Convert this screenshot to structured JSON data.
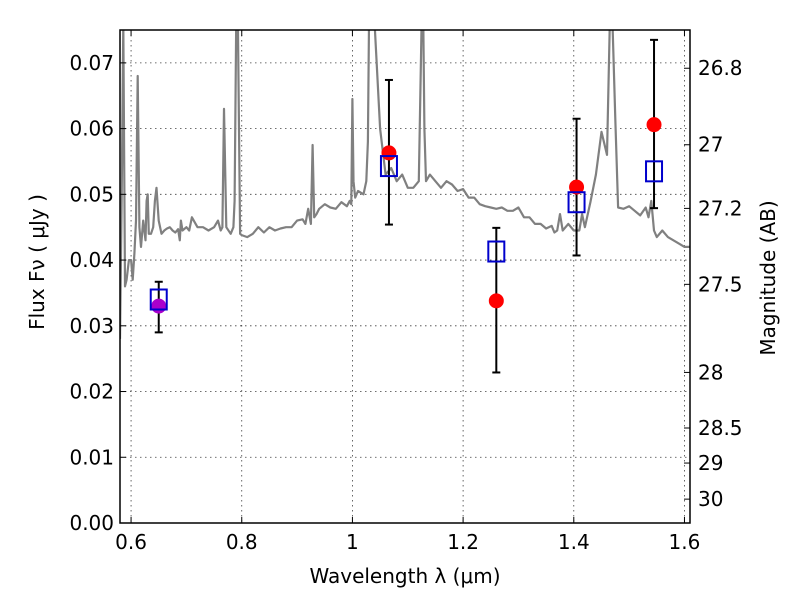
{
  "chart_data": {
    "type": "scatter",
    "title": "",
    "xlabel": "Wavelength  λ (μm)",
    "ylabel": "Flux  Fν (  μJy )",
    "ylabel_right": "Magnitude (AB)",
    "xlim": [
      0.58,
      1.61
    ],
    "ylim": [
      0.0,
      0.075
    ],
    "x_ticks": [
      0.6,
      0.8,
      1.0,
      1.2,
      1.4,
      1.6
    ],
    "x_tick_labels": [
      "0.6",
      "0.8",
      "1",
      "1.2",
      "1.4",
      "1.6"
    ],
    "y_ticks": [
      0.0,
      0.01,
      0.02,
      0.03,
      0.04,
      0.05,
      0.06,
      0.07
    ],
    "y_tick_labels": [
      "0.00",
      "0.01",
      "0.02",
      "0.03",
      "0.04",
      "0.05",
      "0.06",
      "0.07"
    ],
    "right_ticks": [
      26.8,
      27,
      27.2,
      27.5,
      28,
      28.5,
      29,
      30
    ],
    "right_tick_labels": [
      "26.8",
      "27",
      "27.2",
      "27.5",
      "28",
      "28.5",
      "29",
      "30"
    ],
    "grid": true,
    "series": [
      {
        "kind": "line",
        "color": "#808080",
        "x": [
          0.58,
          0.583,
          0.586,
          0.589,
          0.592,
          0.596,
          0.6,
          0.603,
          0.606,
          0.609,
          0.612,
          0.615,
          0.618,
          0.622,
          0.626,
          0.628,
          0.63,
          0.632,
          0.636,
          0.64,
          0.643,
          0.646,
          0.65,
          0.655,
          0.66,
          0.665,
          0.67,
          0.675,
          0.68,
          0.685,
          0.688,
          0.69,
          0.693,
          0.7,
          0.705,
          0.71,
          0.72,
          0.73,
          0.74,
          0.75,
          0.757,
          0.762,
          0.765,
          0.768,
          0.772,
          0.78,
          0.785,
          0.787,
          0.79,
          0.793,
          0.797,
          0.8,
          0.81,
          0.82,
          0.83,
          0.84,
          0.85,
          0.86,
          0.87,
          0.88,
          0.89,
          0.9,
          0.91,
          0.915,
          0.92,
          0.925,
          0.928,
          0.931,
          0.935,
          0.94,
          0.95,
          0.96,
          0.97,
          0.98,
          0.99,
          0.995,
          0.998,
          1.0,
          1.002,
          1.005,
          1.01,
          1.02,
          1.025,
          1.028,
          1.03,
          1.04,
          1.05,
          1.06,
          1.07,
          1.08,
          1.09,
          1.1,
          1.11,
          1.12,
          1.125,
          1.128,
          1.13,
          1.133,
          1.14,
          1.15,
          1.16,
          1.17,
          1.18,
          1.19,
          1.2,
          1.21,
          1.22,
          1.23,
          1.24,
          1.25,
          1.26,
          1.27,
          1.28,
          1.29,
          1.3,
          1.31,
          1.32,
          1.33,
          1.34,
          1.35,
          1.36,
          1.365,
          1.37,
          1.375,
          1.38,
          1.39,
          1.4,
          1.41,
          1.415,
          1.42,
          1.43,
          1.44,
          1.45,
          1.46,
          1.465,
          1.47,
          1.475,
          1.48,
          1.49,
          1.5,
          1.51,
          1.52,
          1.53,
          1.535,
          1.54,
          1.545,
          1.55,
          1.56,
          1.57,
          1.58,
          1.59,
          1.6,
          1.61
        ],
        "values": [
          0.028,
          0.05,
          0.076,
          0.036,
          0.037,
          0.04,
          0.04,
          0.037,
          0.041,
          0.046,
          0.068,
          0.045,
          0.042,
          0.046,
          0.043,
          0.049,
          0.05,
          0.044,
          0.044,
          0.045,
          0.049,
          0.051,
          0.046,
          0.044,
          0.0445,
          0.0448,
          0.045,
          0.0445,
          0.0442,
          0.0447,
          0.043,
          0.046,
          0.0445,
          0.045,
          0.0445,
          0.0465,
          0.045,
          0.045,
          0.0445,
          0.045,
          0.046,
          0.0445,
          0.045,
          0.063,
          0.045,
          0.044,
          0.045,
          0.049,
          0.076,
          0.076,
          0.044,
          0.0438,
          0.0435,
          0.044,
          0.045,
          0.0442,
          0.045,
          0.0445,
          0.0448,
          0.045,
          0.045,
          0.046,
          0.0462,
          0.0455,
          0.0478,
          0.0455,
          0.0575,
          0.0465,
          0.047,
          0.0478,
          0.0485,
          0.048,
          0.0478,
          0.0488,
          0.0482,
          0.049,
          0.0485,
          0.0645,
          0.052,
          0.0495,
          0.0505,
          0.05,
          0.052,
          0.058,
          0.076,
          0.076,
          0.06,
          0.053,
          0.054,
          0.052,
          0.053,
          0.051,
          0.051,
          0.052,
          0.076,
          0.076,
          0.06,
          0.052,
          0.053,
          0.052,
          0.051,
          0.052,
          0.0515,
          0.0505,
          0.0508,
          0.0495,
          0.0495,
          0.0485,
          0.0482,
          0.048,
          0.0478,
          0.048,
          0.0475,
          0.0475,
          0.048,
          0.0465,
          0.0465,
          0.0455,
          0.0455,
          0.0448,
          0.0452,
          0.0442,
          0.0445,
          0.047,
          0.0445,
          0.0455,
          0.0445,
          0.0445,
          0.047,
          0.045,
          0.0488,
          0.053,
          0.0595,
          0.056,
          0.076,
          0.076,
          0.0615,
          0.048,
          0.0478,
          0.0482,
          0.0475,
          0.0468,
          0.048,
          0.0465,
          0.049,
          0.0445,
          0.0435,
          0.0445,
          0.0435,
          0.043,
          0.0425,
          0.042,
          0.042
        ]
      },
      {
        "name": "",
        "kind": "points",
        "marker": "circle",
        "color": "#ff0000",
        "x": [
          1.066,
          1.26,
          1.405,
          1.545
        ],
        "values": [
          0.0563,
          0.0338,
          0.0511,
          0.0606
        ],
        "yerr_low": [
          0.0109,
          0.0109,
          0.0104,
          0.0127
        ],
        "yerr_high": [
          0.0111,
          0.0111,
          0.0104,
          0.0129
        ]
      },
      {
        "kind": "points",
        "marker": "circle",
        "color": "#aa00cc",
        "x": [
          0.65
        ],
        "values": [
          0.033
        ],
        "yerr_low": [
          0.004
        ],
        "yerr_high": [
          0.0037
        ]
      },
      {
        "kind": "points",
        "marker": "open-square",
        "color": "#0000cc",
        "x": [
          0.65,
          1.066,
          1.26,
          1.405,
          1.545
        ],
        "values": [
          0.034,
          0.0543,
          0.0413,
          0.0488,
          0.0535
        ]
      }
    ]
  }
}
